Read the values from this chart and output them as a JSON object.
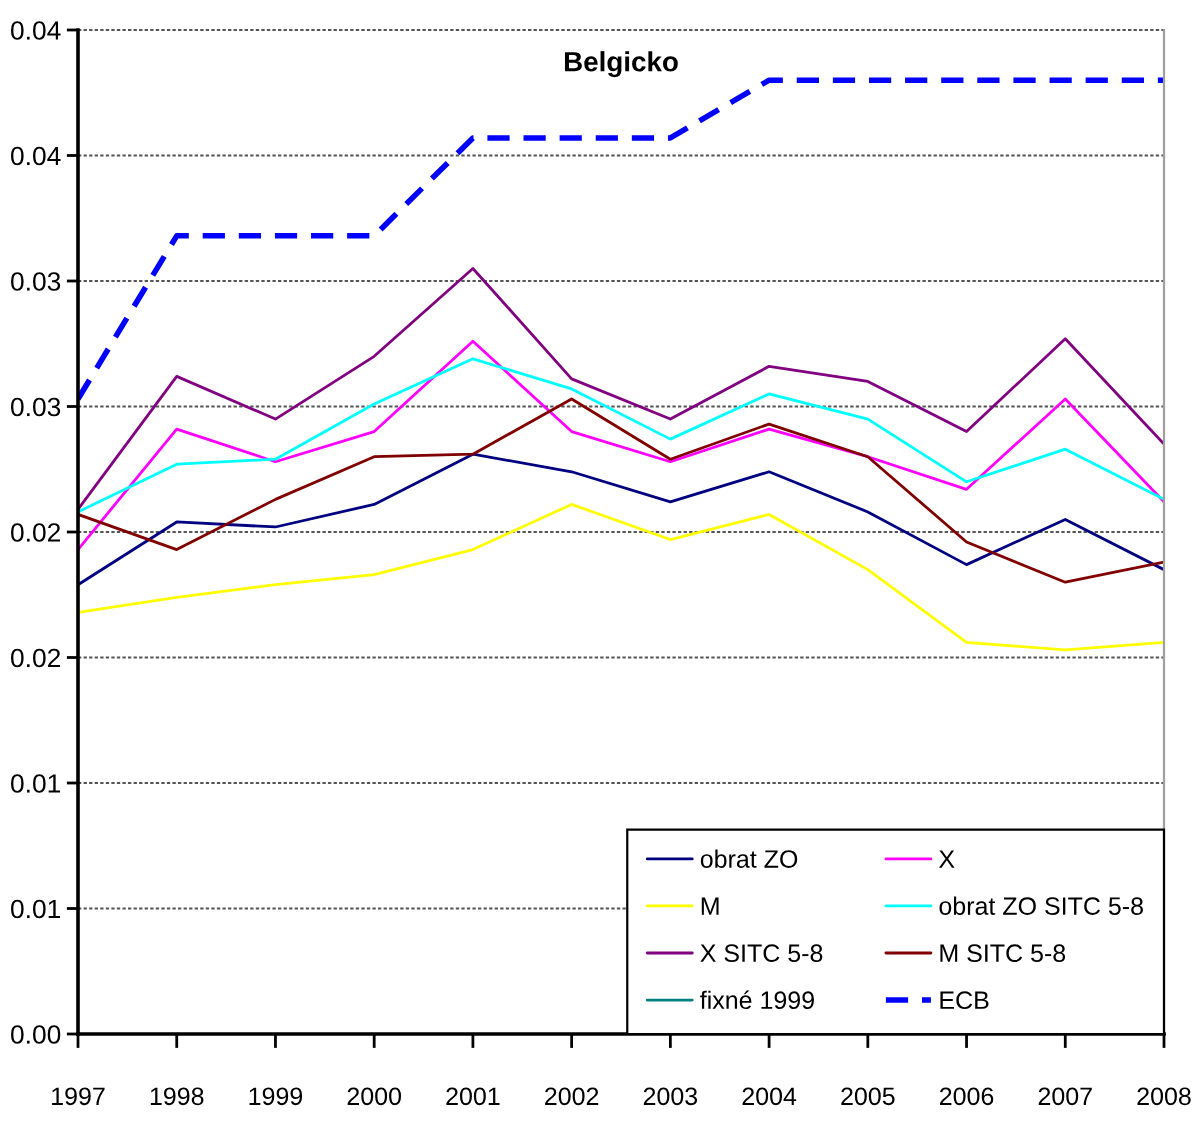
{
  "chart_data": {
    "type": "line",
    "title": "Belgicko",
    "categories": [
      "1997",
      "1998",
      "1999",
      "2000",
      "2001",
      "2002",
      "2003",
      "2004",
      "2005",
      "2006",
      "2007",
      "2008"
    ],
    "series": [
      {
        "name": "obrat ZO",
        "color": "#000080",
        "values": [
          0.0179,
          0.0204,
          0.0202,
          0.0211,
          0.0231,
          0.0224,
          0.0212,
          0.0224,
          0.0208,
          0.0187,
          0.0205,
          0.0185
        ]
      },
      {
        "name": "X",
        "color": "#ff00ff",
        "values": [
          0.0193,
          0.0241,
          0.0228,
          0.024,
          0.0276,
          0.024,
          0.0228,
          0.0241,
          0.023,
          0.0217,
          0.0253,
          0.0212
        ]
      },
      {
        "name": "M",
        "color": "#ffff00",
        "values": [
          0.0168,
          0.0174,
          0.0179,
          0.0183,
          0.0193,
          0.0211,
          0.0197,
          0.0207,
          0.0185,
          0.0156,
          0.0153,
          0.0156
        ]
      },
      {
        "name": "obrat ZO SITC 5-8",
        "color": "#00ffff",
        "values": [
          0.0208,
          0.0227,
          0.0229,
          0.0251,
          0.0269,
          0.0257,
          0.0237,
          0.0255,
          0.0245,
          0.022,
          0.0233,
          0.0213
        ]
      },
      {
        "name": "X SITC 5-8",
        "color": "#800080",
        "values": [
          0.0209,
          0.0262,
          0.0245,
          0.027,
          0.0305,
          0.0261,
          0.0245,
          0.0266,
          0.026,
          0.024,
          0.0277,
          0.0235
        ]
      },
      {
        "name": "M SITC 5-8",
        "color": "#800000",
        "values": [
          0.0207,
          0.0193,
          0.0213,
          0.023,
          0.0231,
          0.0253,
          0.0229,
          0.0243,
          0.023,
          0.0196,
          0.018,
          0.0188
        ]
      },
      {
        "name": "fixné 1999",
        "color": "#008080",
        "values": [
          null,
          null,
          null,
          null,
          null,
          null,
          null,
          null,
          null,
          null,
          null,
          null
        ]
      },
      {
        "name": "ECB",
        "color": "#0000ff",
        "line_style": "dashed",
        "values": [
          0.0253,
          0.0318,
          0.0318,
          0.0318,
          0.0357,
          0.0357,
          0.0357,
          0.038,
          0.038,
          0.038,
          0.038,
          0.038
        ]
      }
    ],
    "ylim": [
      0,
      0.04
    ],
    "yticks": [
      {
        "value": 0,
        "label": "0.00"
      },
      {
        "value": 0.005,
        "label": "0.01"
      },
      0.01,
      {
        "value": 0.015,
        "label": "0.02"
      },
      0.02,
      {
        "value": 0.025,
        "label": "0.03"
      },
      0.03,
      {
        "value": 0.035,
        "label": "0.04"
      },
      0.04
    ],
    "grid": "y",
    "legend": "bottom right"
  }
}
